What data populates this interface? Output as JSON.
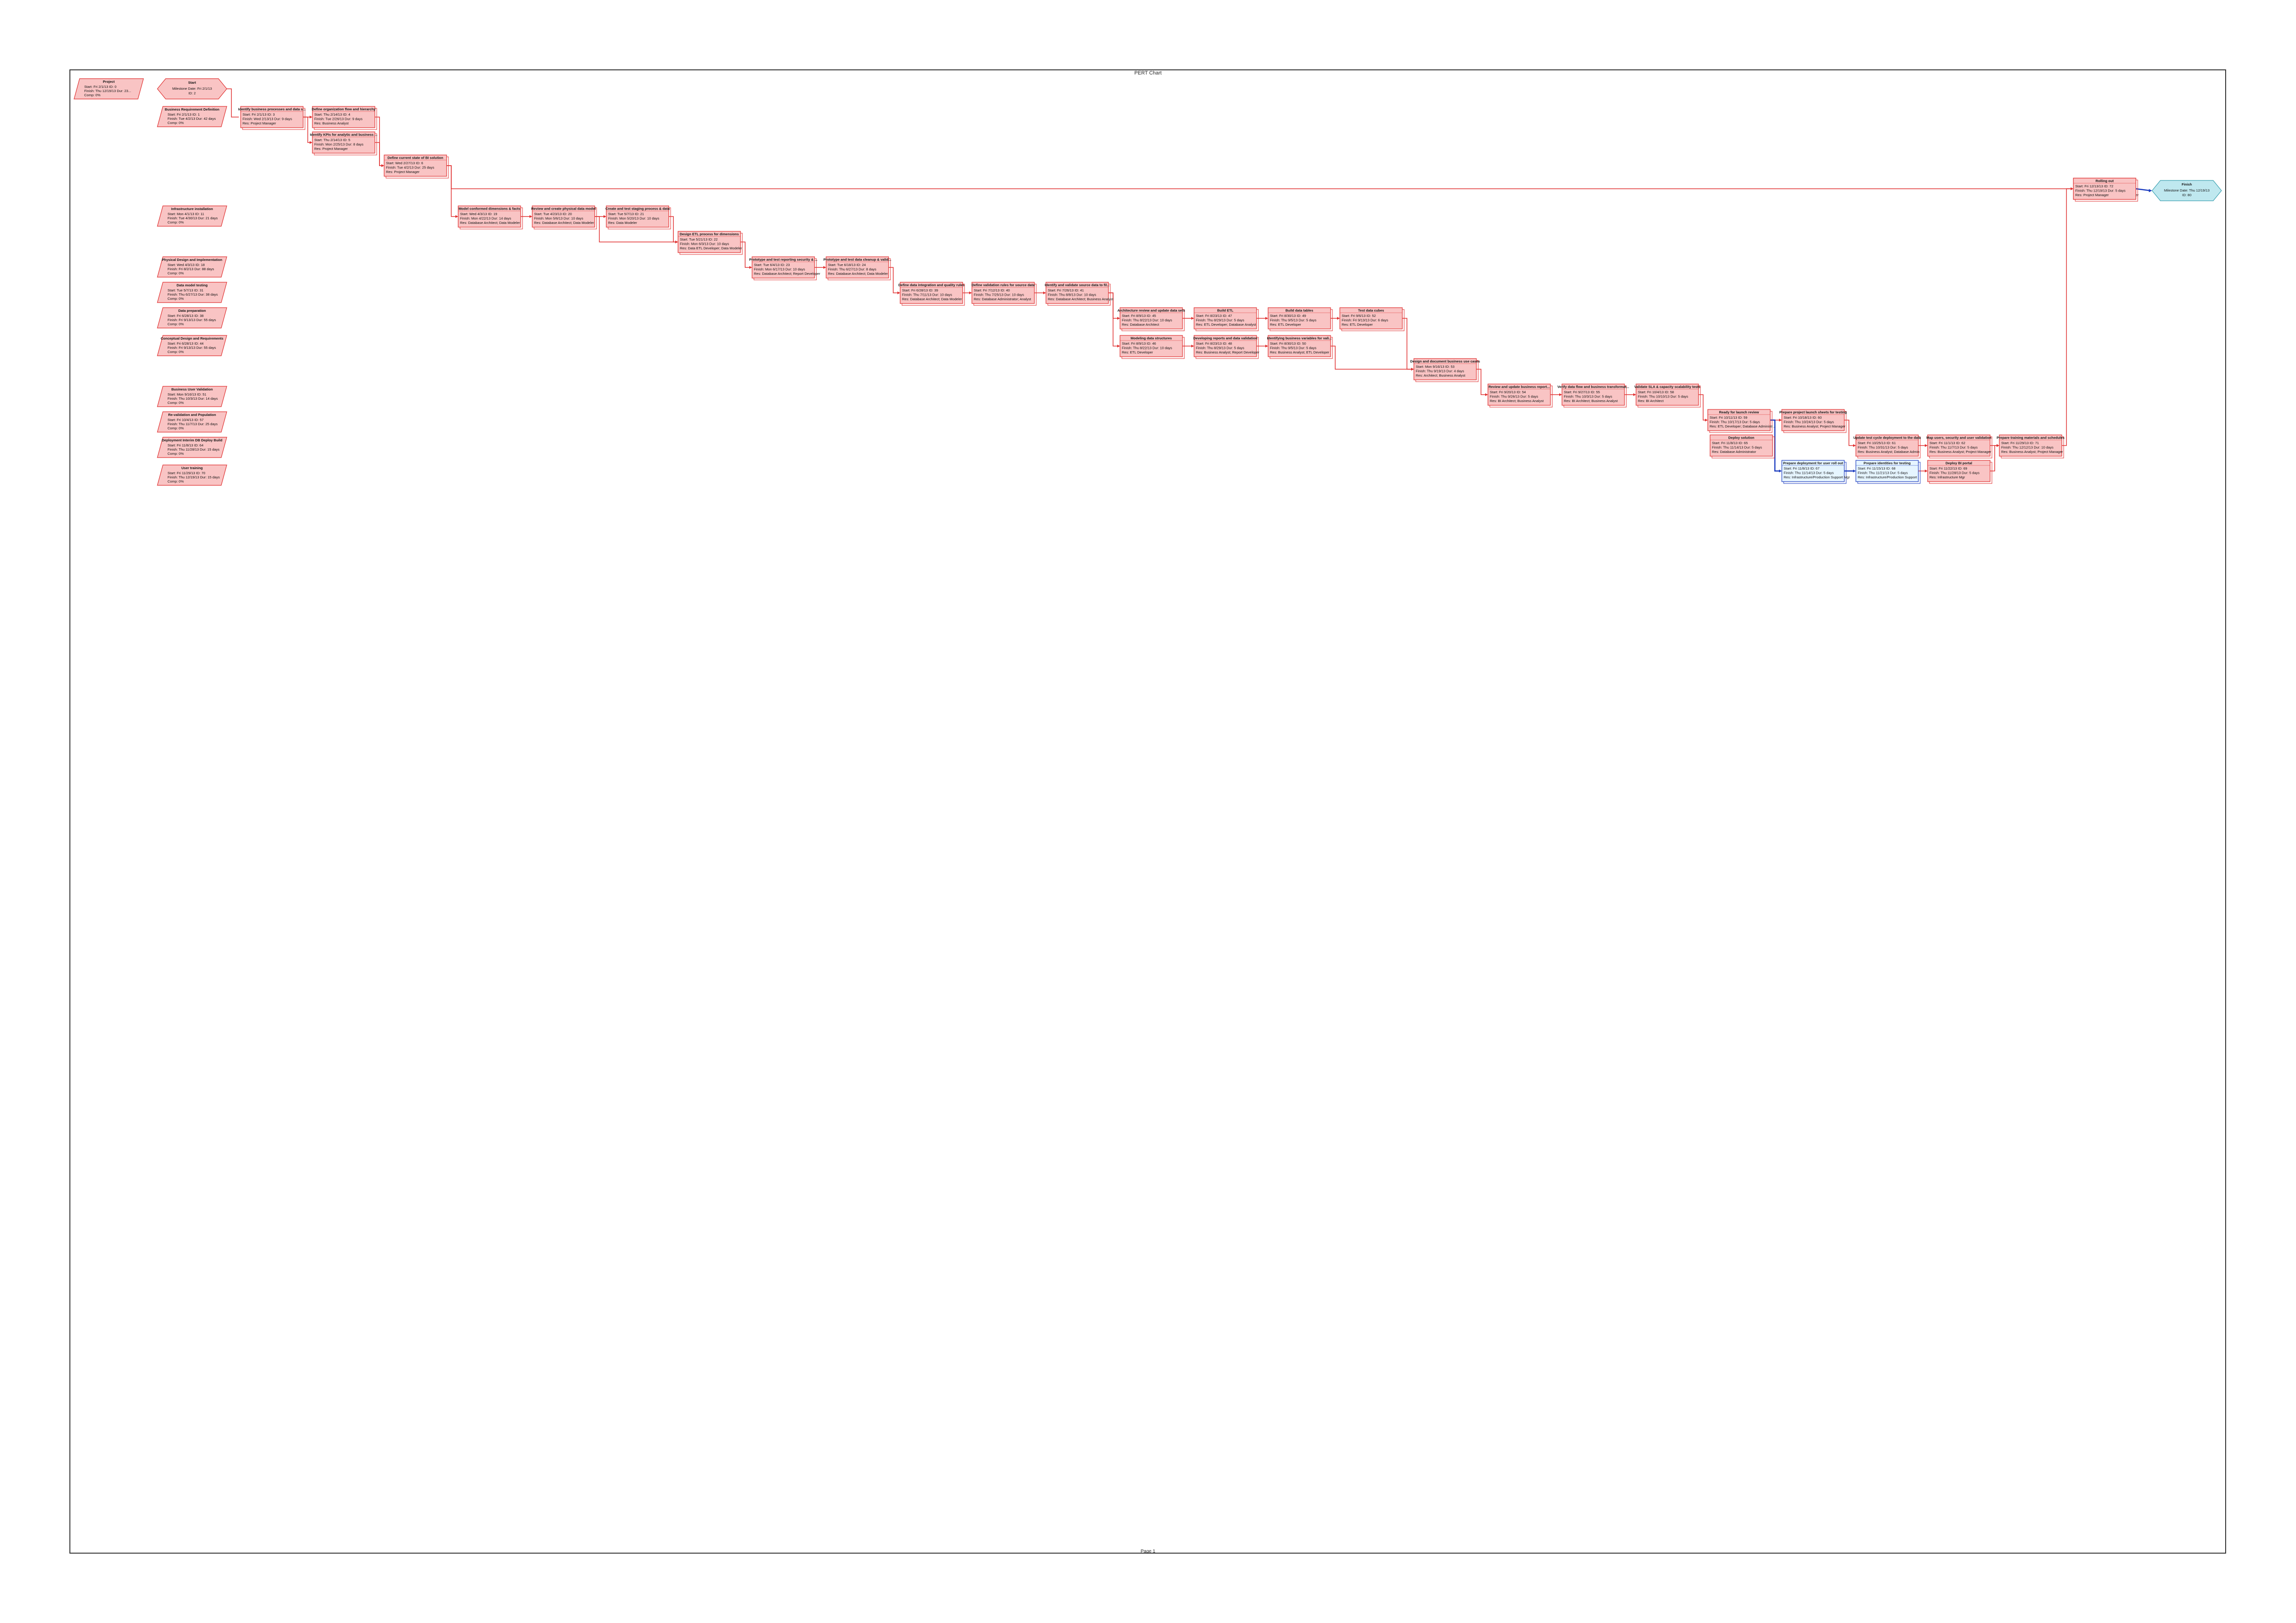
{
  "page": {
    "title": "PERT Chart",
    "footer": "Page 1"
  },
  "colors": {
    "critical": "#e03030",
    "critical_fill": "#f9c4c4",
    "normal": "#1a3bbf",
    "normal_fill": "#e6f5ff",
    "milestone_fill": "#bfe8ef",
    "milestone_stroke": "#3aa0b0"
  },
  "legend": [
    {
      "title": "Project",
      "lines": [
        "Start: Fri 2/1/13  ID: 0",
        "Finish: Thu 12/19/13  Dur: 23...",
        "Comp: 0%"
      ]
    },
    {
      "title": "Business Requirement Definition",
      "lines": [
        "Start: Fri 2/1/13  ID: 1",
        "Finish: Tue 4/2/13  Dur: 42 days",
        "Comp: 0%"
      ]
    },
    {
      "title": "Infrastructure installation",
      "lines": [
        "Start: Mon 4/1/13  ID: 11",
        "Finish: Tue 4/30/13  Dur: 21 days",
        "Comp: 0%"
      ]
    },
    {
      "title": "Physical Design and Implementation",
      "lines": [
        "Start: Wed 4/3/13  ID: 18",
        "Finish: Fri 8/2/13  Dur: 88 days",
        "Comp: 0%"
      ]
    },
    {
      "title": "Data model testing",
      "lines": [
        "Start: Tue 5/7/13  ID: 31",
        "Finish: Thu 6/27/13  Dur: 38 days",
        "Comp: 0%"
      ]
    },
    {
      "title": "Data preparation",
      "lines": [
        "Start: Fri 6/28/13  ID: 38",
        "Finish: Fri 9/13/13  Dur: 55 days",
        "Comp: 0%"
      ]
    },
    {
      "title": "Conceptual Design and Requirements",
      "lines": [
        "Start: Fri 6/28/13  ID: 44",
        "Finish: Fri 9/13/13  Dur: 55 days",
        "Comp: 0%"
      ]
    },
    {
      "title": "Business User Validation",
      "lines": [
        "Start: Mon 9/16/13  ID: 51",
        "Finish: Thu 10/3/13  Dur: 14 days",
        "Comp: 0%"
      ]
    },
    {
      "title": "Re-validation and Population",
      "lines": [
        "Start: Fri 10/4/13  ID: 57",
        "Finish: Thu 11/7/13  Dur: 25 days",
        "Comp: 0%"
      ]
    },
    {
      "title": "Deployment Interim DB Deploy Build",
      "lines": [
        "Start: Fri 11/8/13  ID: 64",
        "Finish: Thu 11/28/13  Dur: 15 days",
        "Comp: 0%"
      ]
    },
    {
      "title": "User training",
      "lines": [
        "Start: Fri 11/29/13  ID: 70",
        "Finish: Thu 12/19/13  Dur: 15 days",
        "Comp: 0%"
      ]
    }
  ],
  "start_node": {
    "title": "Start",
    "lines": [
      "Milestone Date: Fri 2/1/13",
      "ID: 2"
    ]
  },
  "finish_node": {
    "title": "Finish",
    "lines": [
      "Milestone Date: Thu 12/19/13",
      "ID: 80"
    ]
  },
  "tasks": [
    {
      "id": "t3",
      "title": "Identify business processes and data s...",
      "lines": [
        "Start: Fri 2/1/13  ID: 3",
        "Finish: Wed 2/13/13  Dur: 9 days",
        "Res: Project Manager"
      ],
      "crit": true
    },
    {
      "id": "t4",
      "title": "Define organization flow and hierarchy",
      "lines": [
        "Start: Thu 2/14/13  ID: 4",
        "Finish: Tue 2/26/13  Dur: 9 days",
        "Res: Business Analyst"
      ],
      "crit": true
    },
    {
      "id": "t5",
      "title": "Identify KPIs for analytic and business ...",
      "lines": [
        "Start: Thu 2/14/13  ID: 5",
        "Finish: Mon 2/25/13  Dur: 8 days",
        "Res: Project Manager"
      ],
      "crit": true
    },
    {
      "id": "t6",
      "title": "Define current state of BI solution",
      "lines": [
        "Start: Wed 2/27/13  ID: 6",
        "Finish: Tue 4/2/13  Dur: 25 days",
        "Res: Project Manager"
      ],
      "crit": true
    },
    {
      "id": "t7",
      "title": "Model conformed dimensions & facts",
      "lines": [
        "Start: Wed 4/3/13  ID: 19",
        "Finish: Mon 4/22/13  Dur: 14 days",
        "Res: Database Architect; Data Modeler"
      ],
      "crit": true
    },
    {
      "id": "t8",
      "title": "Review and create physical data model",
      "lines": [
        "Start: Tue 4/23/13  ID: 20",
        "Finish: Mon 5/6/13  Dur: 10 days",
        "Res: Database Architect; Data Modeler"
      ],
      "crit": true
    },
    {
      "id": "t9",
      "title": "Create and test staging process & data",
      "lines": [
        "Start: Tue 5/7/13  ID: 21",
        "Finish: Mon 5/20/13  Dur: 10 days",
        "Res: Data Modeler"
      ],
      "crit": true
    },
    {
      "id": "t10",
      "title": "Design ETL process for dimensions",
      "lines": [
        "Start: Tue 5/21/13  ID: 22",
        "Finish: Mon 6/3/13  Dur: 10 days",
        "Res: Data ETL Developer; Data Modeler"
      ],
      "crit": true
    },
    {
      "id": "t11",
      "title": "Prototype and test reporting security & ...",
      "lines": [
        "Start: Tue 6/4/13  ID: 23",
        "Finish: Mon 6/17/13  Dur: 10 days",
        "Res: Database Architect; Report Developer"
      ],
      "crit": true
    },
    {
      "id": "t12",
      "title": "Prototype and test data cleanup & valid...",
      "lines": [
        "Start: Tue 6/18/13  ID: 24",
        "Finish: Thu 6/27/13  Dur: 8 days",
        "Res: Database Architect; Data Modeler"
      ],
      "crit": true
    },
    {
      "id": "t13",
      "title": "Define data integration and quality rules",
      "lines": [
        "Start: Fri 6/28/13  ID: 39",
        "Finish: Thu 7/11/13  Dur: 10 days",
        "Res: Database Architect; Data Modeler"
      ],
      "crit": true
    },
    {
      "id": "t14",
      "title": "Define validation rules for source data",
      "lines": [
        "Start: Fri 7/12/13  ID: 40",
        "Finish: Thu 7/25/13  Dur: 10 days",
        "Res: Database Administrator; Analyst"
      ],
      "crit": true
    },
    {
      "id": "t15",
      "title": "Identify and validate source data to fil...",
      "lines": [
        "Start: Fri 7/26/13  ID: 41",
        "Finish: Thu 8/8/13  Dur: 10 days",
        "Res: Database Architect; Business Analyst"
      ],
      "crit": true
    },
    {
      "id": "t16",
      "title": "Architecture review and update data sets",
      "lines": [
        "Start: Fri 8/9/13  ID: 45",
        "Finish: Thu 8/22/13  Dur: 10 days",
        "Res: Database Architect"
      ],
      "crit": true
    },
    {
      "id": "t17",
      "title": "Modeling data structures",
      "lines": [
        "Start: Fri 8/9/13  ID: 46",
        "Finish: Thu 8/22/13  Dur: 10 days",
        "Res: ETL Developer"
      ],
      "crit": true
    },
    {
      "id": "t18",
      "title": "Build ETL",
      "lines": [
        "Start: Fri 8/23/13  ID: 47",
        "Finish: Thu 8/29/13  Dur: 5 days",
        "Res: ETL Developer; Database Analyst"
      ],
      "crit": true
    },
    {
      "id": "t19",
      "title": "Developing reports and data validation",
      "lines": [
        "Start: Fri 8/23/13  ID: 48",
        "Finish: Thu 8/29/13  Dur: 5 days",
        "Res: Business Analyst; Report Developer"
      ],
      "crit": true
    },
    {
      "id": "t20",
      "title": "Build data tables",
      "lines": [
        "Start: Fri 8/30/13  ID: 49",
        "Finish: Thu 9/5/13  Dur: 5 days",
        "Res: ETL Developer"
      ],
      "crit": true
    },
    {
      "id": "t21",
      "title": "Identifying business variables for vali...",
      "lines": [
        "Start: Fri 8/30/13  ID: 50",
        "Finish: Thu 9/5/13  Dur: 5 days",
        "Res: Business Analyst; ETL Developer"
      ],
      "crit": true
    },
    {
      "id": "t22",
      "title": "Test data cubes",
      "lines": [
        "Start: Fri 9/6/13  ID: 52",
        "Finish: Fri 9/13/13  Dur: 6 days",
        "Res: ETL Developer"
      ],
      "crit": true
    },
    {
      "id": "t23",
      "title": "Design and document business use cases",
      "lines": [
        "Start: Mon 9/16/13  ID: 53",
        "Finish: Thu 9/19/13  Dur: 4 days",
        "Res: Architect; Business Analyst"
      ],
      "crit": true
    },
    {
      "id": "t24",
      "title": "Review and update business report...",
      "lines": [
        "Start: Fri 9/20/13  ID: 54",
        "Finish: Thu 9/26/13  Dur: 5 days",
        "Res: BI Architect; Business Analyst"
      ],
      "crit": true
    },
    {
      "id": "t25",
      "title": "Verify data flow and business transformat...",
      "lines": [
        "Start: Fri 9/27/13  ID: 55",
        "Finish: Thu 10/3/13  Dur: 5 days",
        "Res: BI Architect; Business Analyst"
      ],
      "crit": true
    },
    {
      "id": "t26",
      "title": "Validate SLA & capacity scalability tests",
      "lines": [
        "Start: Fri 10/4/13  ID: 58",
        "Finish: Thu 10/10/13  Dur: 5 days",
        "Res: BI Architect"
      ],
      "crit": true
    },
    {
      "id": "t27",
      "title": "Ready for launch review",
      "lines": [
        "Start: Fri 10/11/13  ID: 59",
        "Finish: Thu 10/17/13  Dur: 5 days",
        "Res: ETL Developer; Database Administr..."
      ],
      "crit": true
    },
    {
      "id": "t28",
      "title": "Prepare project launch sheets for testing",
      "lines": [
        "Start: Fri 10/18/13  ID: 60",
        "Finish: Thu 10/24/13  Dur: 5 days",
        "Res: Business Analyst; Project Manager"
      ],
      "crit": true
    },
    {
      "id": "t29",
      "title": "Update test cycle deployment to the data",
      "lines": [
        "Start: Fri 10/25/13  ID: 61",
        "Finish: Thu 10/31/13  Dur: 5 days",
        "Res: Business Analyst; Database Admin"
      ],
      "crit": true
    },
    {
      "id": "t30",
      "title": "Map users, security and user validation",
      "lines": [
        "Start: Fri 11/1/13  ID: 62",
        "Finish: Thu 11/7/13  Dur: 5 days",
        "Res: Business Analyst; Project Manager"
      ],
      "crit": true
    },
    {
      "id": "t31",
      "title": "Deploy solution",
      "lines": [
        "Start: Fri 11/8/13  ID: 65",
        "Finish: Thu 11/14/13  Dur: 5 days",
        "Res: Database Administrator"
      ],
      "crit": true
    },
    {
      "id": "t32",
      "title": "Prepare and validate operational data",
      "lines": [
        "Start: Fri 11/15/13  ID: 66",
        "Finish: Thu 11/28/13  Dur: 10 days",
        "Res: Business Analyst; Report Developer"
      ],
      "crit": true
    },
    {
      "id": "t33",
      "title": "Prepare training materials and schedules",
      "lines": [
        "Start: Fri 11/29/13  ID: 71",
        "Finish: Thu 12/12/13  Dur: 10 days",
        "Res: Business Analyst; Project Manager"
      ],
      "crit": true
    },
    {
      "id": "t34",
      "title": "Rolling out",
      "lines": [
        "Start: Fri 12/13/13  ID: 72",
        "Finish: Thu 12/19/13  Dur: 5 days",
        "Res: Project Manager"
      ],
      "crit": true
    },
    {
      "id": "t35",
      "title": "Prepare deployment for user roll out",
      "lines": [
        "Start: Fri 11/8/13  ID: 67",
        "Finish: Thu 11/14/13  Dur: 5 days",
        "Res: Infrastructure/Production Support Mgr"
      ],
      "crit": false
    },
    {
      "id": "t36",
      "title": "Prepare identities for testing",
      "lines": [
        "Start: Fri 11/15/13  ID: 68",
        "Finish: Thu 11/21/13  Dur: 5 days",
        "Res: Infrastructure/Production Support"
      ],
      "crit": false
    },
    {
      "id": "t37",
      "title": "Deploy BI portal",
      "lines": [
        "Start: Fri 11/22/13  ID: 69",
        "Finish: Thu 11/28/13  Dur: 5 days",
        "Res: Infrastructure Mgr"
      ],
      "crit": true
    }
  ]
}
